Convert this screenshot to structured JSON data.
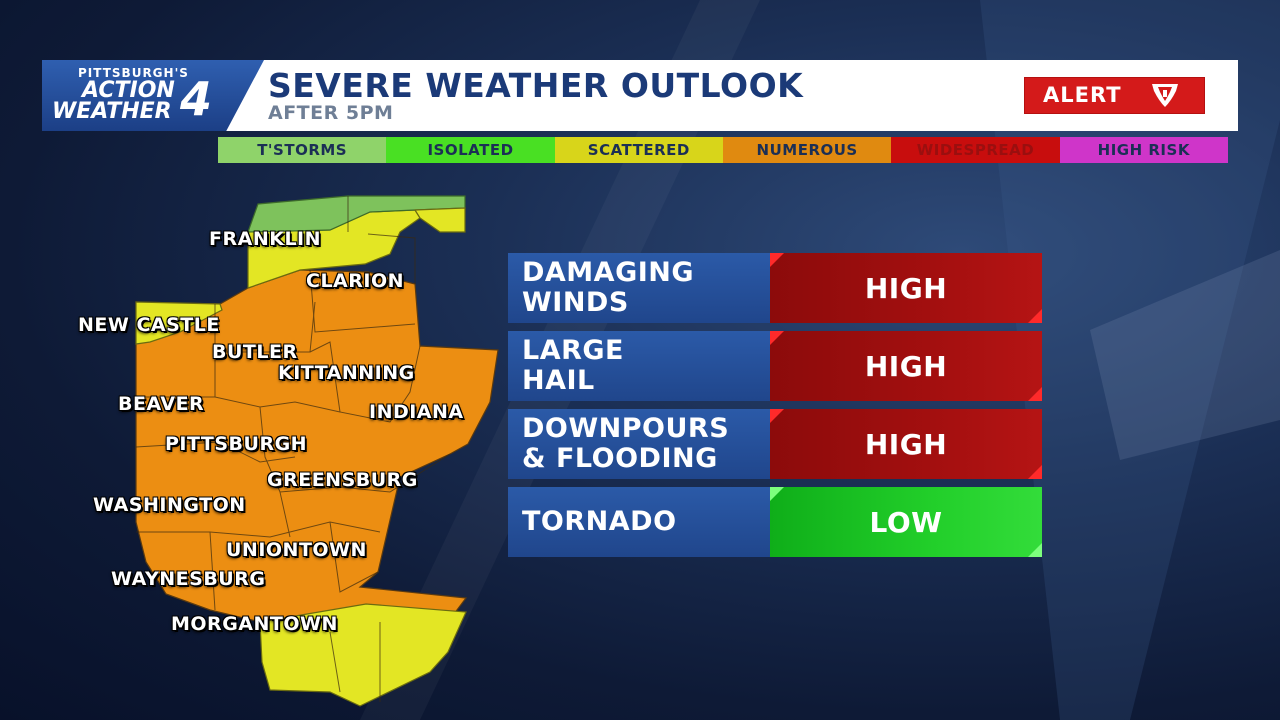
{
  "logo": {
    "line1": "PITTSBURGH'S",
    "line2": "ACTION",
    "line3": "WEATHER",
    "number": "4"
  },
  "header": {
    "title": "SEVERE WEATHER OUTLOOK",
    "subtitle": "AFTER 5PM"
  },
  "alert": {
    "label": "ALERT",
    "icon": "alert-4-shield-icon",
    "color": "#d41a1a"
  },
  "legend": [
    {
      "label": "T'STORMS",
      "bg": "#8fd36a",
      "fg": "#1b2f55"
    },
    {
      "label": "ISOLATED",
      "bg": "#49e023",
      "fg": "#1b2f55"
    },
    {
      "label": "SCATTERED",
      "bg": "#d8d51a",
      "fg": "#1b2f55"
    },
    {
      "label": "NUMEROUS",
      "bg": "#e08a10",
      "fg": "#1b2f55"
    },
    {
      "label": "WIDESPREAD",
      "bg": "#c80d0d",
      "fg": "#9a0f0f"
    },
    {
      "label": "HIGH RISK",
      "bg": "#cf35c9",
      "fg": "#1b2f55"
    }
  ],
  "map": {
    "risk_colors": {
      "tstorms": "#7ec25c",
      "scattered": "#e3e624",
      "numerous": "#ec8e12"
    },
    "cities": [
      "FRANKLIN",
      "CLARION",
      "NEW CASTLE",
      "BUTLER",
      "KITTANNING",
      "BEAVER",
      "INDIANA",
      "PITTSBURGH",
      "GREENSBURG",
      "WASHINGTON",
      "UNIONTOWN",
      "WAYNESBURG",
      "MORGANTOWN"
    ]
  },
  "threats": [
    {
      "line1": "DAMAGING",
      "line2": "WINDS",
      "level": "HIGH",
      "severity": "high"
    },
    {
      "line1": "LARGE",
      "line2": "HAIL",
      "level": "HIGH",
      "severity": "high"
    },
    {
      "line1": "DOWNPOURS",
      "line2": "& FLOODING",
      "level": "HIGH",
      "severity": "high"
    },
    {
      "line1": "TORNADO",
      "line2": "",
      "level": "LOW",
      "severity": "low"
    }
  ]
}
